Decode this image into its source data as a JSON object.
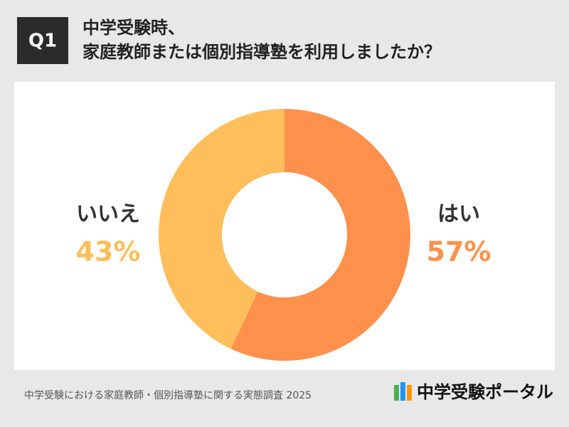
{
  "header": {
    "badge": "Q1",
    "title_lines": [
      "中学受験時、",
      "家庭教師または個別指導塾を利用しましたか？"
    ]
  },
  "chart_data": {
    "type": "donut",
    "categories": [
      "はい",
      "いいえ"
    ],
    "values": [
      57,
      43
    ],
    "value_labels": [
      "57%",
      "43%"
    ],
    "colors": [
      "#FF914D",
      "#FFBE5C"
    ]
  },
  "footer": {
    "source": "中学受験における家庭教師・個別指導塾に関する実態調査 2025",
    "logo": "中学受験ポータル"
  }
}
